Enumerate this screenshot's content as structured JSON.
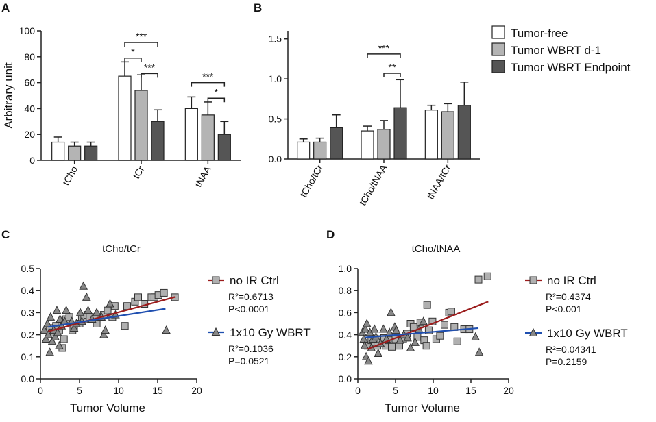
{
  "figure": {
    "panels": {
      "A": "A",
      "B": "B",
      "C": "C",
      "D": "D"
    }
  },
  "colors": {
    "tumor_free": "#ffffff",
    "wbrt_d1": "#b4b4b4",
    "wbrt_endpoint": "#555555",
    "no_ir_line": "#9b1c1c",
    "wbrt_line": "#1f4fb0",
    "marker_fill": "#b0b0b0"
  },
  "chart_data": [
    {
      "panel": "A",
      "type": "bar",
      "ylabel": "Arbitrary unit",
      "ylim": [
        0,
        100
      ],
      "yticks": [
        0,
        20,
        40,
        60,
        80,
        100
      ],
      "categories": [
        "tCho",
        "tCr",
        "tNAA"
      ],
      "series": [
        {
          "name": "Tumor-free",
          "values": [
            14,
            65,
            40
          ],
          "errors": [
            4,
            11,
            9
          ]
        },
        {
          "name": "Tumor WBRT d-1",
          "values": [
            11,
            54,
            35
          ],
          "errors": [
            3,
            12,
            10
          ]
        },
        {
          "name": "Tumor WBRT Endpoint",
          "values": [
            11,
            30,
            20
          ],
          "errors": [
            3,
            9,
            10
          ]
        }
      ],
      "significance": [
        {
          "category": 1,
          "from": 0,
          "to": 2,
          "label": "***",
          "y": 91
        },
        {
          "category": 1,
          "from": 0,
          "to": 1,
          "label": "*",
          "y": 79
        },
        {
          "category": 1,
          "from": 1,
          "to": 2,
          "label": "***",
          "y": 67
        },
        {
          "category": 2,
          "from": 0,
          "to": 2,
          "label": "***",
          "y": 60
        },
        {
          "category": 2,
          "from": 1,
          "to": 2,
          "label": "*",
          "y": 48
        }
      ]
    },
    {
      "panel": "B",
      "type": "bar",
      "ylabel": "",
      "ylim": [
        0,
        1.6
      ],
      "yticks": [
        0.0,
        0.5,
        1.0,
        1.5
      ],
      "ytick_labels": [
        "0.0",
        "0.5",
        "1.0",
        "1.5"
      ],
      "categories": [
        "tCho/tCr",
        "tCho/tNAA",
        "tNAA/tCr"
      ],
      "series": [
        {
          "name": "Tumor-free",
          "values": [
            0.21,
            0.35,
            0.61
          ],
          "errors": [
            0.04,
            0.06,
            0.06
          ]
        },
        {
          "name": "Tumor WBRT d-1",
          "values": [
            0.21,
            0.37,
            0.59
          ],
          "errors": [
            0.05,
            0.11,
            0.1
          ]
        },
        {
          "name": "Tumor WBRT Endpoint",
          "values": [
            0.39,
            0.64,
            0.67
          ],
          "errors": [
            0.16,
            0.35,
            0.29
          ]
        }
      ],
      "significance": [
        {
          "category": 1,
          "from": 0,
          "to": 2,
          "label": "***",
          "y": 1.31
        },
        {
          "category": 1,
          "from": 1,
          "to": 2,
          "label": "**",
          "y": 1.07
        }
      ]
    },
    {
      "panel": "C",
      "type": "scatter",
      "title": "tCho/tCr",
      "xlabel": "Tumor Volume",
      "xlim": [
        0,
        20
      ],
      "ylim": [
        0.0,
        0.5
      ],
      "xticks": [
        0,
        5,
        10,
        15,
        20
      ],
      "yticks": [
        0.0,
        0.1,
        0.2,
        0.3,
        0.4,
        0.5
      ],
      "ytick_labels": [
        "0.0",
        "0.1",
        "0.2",
        "0.3",
        "0.4",
        "0.5"
      ],
      "series": [
        {
          "name": "no IR Ctrl",
          "marker": "square",
          "r2": "R²=0.6713",
          "p": "P<0.0001",
          "fit": {
            "x": [
              1,
              17.3
            ],
            "y": [
              0.215,
              0.372
            ]
          },
          "points": [
            [
              1.2,
              0.23
            ],
            [
              1.5,
              0.21
            ],
            [
              2.0,
              0.24
            ],
            [
              2.4,
              0.22
            ],
            [
              2.7,
              0.26
            ],
            [
              3.0,
              0.18
            ],
            [
              3.3,
              0.27
            ],
            [
              3.7,
              0.28
            ],
            [
              4.1,
              0.22
            ],
            [
              4.3,
              0.23
            ],
            [
              5.0,
              0.25
            ],
            [
              5.3,
              0.28
            ],
            [
              5.6,
              0.27
            ],
            [
              6.0,
              0.29
            ],
            [
              6.3,
              0.28
            ],
            [
              6.8,
              0.28
            ],
            [
              7.2,
              0.25
            ],
            [
              7.8,
              0.28
            ],
            [
              8.1,
              0.29
            ],
            [
              8.6,
              0.31
            ],
            [
              9.2,
              0.28
            ],
            [
              9.5,
              0.33
            ],
            [
              10.8,
              0.24
            ],
            [
              11.1,
              0.33
            ],
            [
              12.1,
              0.35
            ],
            [
              12.5,
              0.37
            ],
            [
              13.3,
              0.34
            ],
            [
              14.2,
              0.37
            ],
            [
              14.6,
              0.37
            ],
            [
              15.1,
              0.38
            ],
            [
              15.8,
              0.39
            ],
            [
              17.2,
              0.37
            ],
            [
              2.8,
              0.14
            ]
          ]
        },
        {
          "name": "1x10 Gy WBRT",
          "marker": "triangle",
          "r2": "R²=0.1036",
          "p": "P=0.0521",
          "fit": {
            "x": [
              1,
              16
            ],
            "y": [
              0.235,
              0.318
            ]
          },
          "points": [
            [
              0.5,
              0.22
            ],
            [
              0.7,
              0.18
            ],
            [
              0.9,
              0.25
            ],
            [
              1.0,
              0.2
            ],
            [
              1.2,
              0.12
            ],
            [
              1.3,
              0.28
            ],
            [
              1.5,
              0.17
            ],
            [
              1.7,
              0.22
            ],
            [
              1.9,
              0.19
            ],
            [
              2.1,
              0.31
            ],
            [
              2.2,
              0.21
            ],
            [
              2.4,
              0.15
            ],
            [
              2.5,
              0.27
            ],
            [
              2.7,
              0.24
            ],
            [
              3.1,
              0.26
            ],
            [
              3.3,
              0.31
            ],
            [
              4.0,
              0.26
            ],
            [
              4.3,
              0.23
            ],
            [
              4.6,
              0.25
            ],
            [
              5.1,
              0.3
            ],
            [
              5.3,
              0.26
            ],
            [
              5.5,
              0.42
            ],
            [
              5.9,
              0.37
            ],
            [
              6.1,
              0.31
            ],
            [
              6.6,
              0.27
            ],
            [
              7.2,
              0.3
            ],
            [
              7.8,
              0.28
            ],
            [
              8.1,
              0.2
            ],
            [
              8.3,
              0.22
            ],
            [
              8.9,
              0.34
            ],
            [
              9.6,
              0.29
            ],
            [
              16.1,
              0.22
            ]
          ]
        }
      ]
    },
    {
      "panel": "D",
      "type": "scatter",
      "title": "tCho/tNAA",
      "xlabel": "Tumor Volume",
      "xlim": [
        0,
        20
      ],
      "ylim": [
        0.0,
        1.0
      ],
      "xticks": [
        0,
        5,
        10,
        15,
        20
      ],
      "yticks": [
        0.0,
        0.2,
        0.4,
        0.6,
        0.8,
        1.0
      ],
      "ytick_labels": [
        "0.0",
        "0.2",
        "0.4",
        "0.6",
        "0.8",
        "1.0"
      ],
      "series": [
        {
          "name": "no IR Ctrl",
          "marker": "square",
          "r2": "R²=0.4374",
          "p": "P<0.001",
          "fit": {
            "x": [
              1.3,
              17.3
            ],
            "y": [
              0.27,
              0.7
            ]
          },
          "points": [
            [
              1.3,
              0.3
            ],
            [
              1.8,
              0.35
            ],
            [
              2.2,
              0.33
            ],
            [
              2.6,
              0.3
            ],
            [
              3.0,
              0.36
            ],
            [
              3.5,
              0.37
            ],
            [
              3.7,
              0.3
            ],
            [
              4.1,
              0.35
            ],
            [
              4.5,
              0.29
            ],
            [
              5.0,
              0.36
            ],
            [
              5.5,
              0.3
            ],
            [
              6.0,
              0.36
            ],
            [
              6.5,
              0.41
            ],
            [
              7.0,
              0.5
            ],
            [
              7.4,
              0.47
            ],
            [
              7.9,
              0.38
            ],
            [
              8.3,
              0.51
            ],
            [
              8.8,
              0.35
            ],
            [
              9.1,
              0.3
            ],
            [
              9.4,
              0.44
            ],
            [
              9.9,
              0.52
            ],
            [
              10.4,
              0.36
            ],
            [
              10.9,
              0.39
            ],
            [
              11.5,
              0.49
            ],
            [
              12.1,
              0.6
            ],
            [
              12.4,
              0.61
            ],
            [
              12.8,
              0.47
            ],
            [
              13.2,
              0.34
            ],
            [
              14.1,
              0.45
            ],
            [
              14.8,
              0.45
            ],
            [
              16.0,
              0.9
            ],
            [
              17.2,
              0.93
            ],
            [
              9.2,
              0.67
            ]
          ]
        },
        {
          "name": "1x10 Gy WBRT",
          "marker": "triangle",
          "r2": "R²=0.04341",
          "p": "P=0.2159",
          "fit": {
            "x": [
              1,
              16
            ],
            "y": [
              0.375,
              0.46
            ]
          },
          "points": [
            [
              0.6,
              0.42
            ],
            [
              0.8,
              0.36
            ],
            [
              0.9,
              0.3
            ],
            [
              1.0,
              0.45
            ],
            [
              1.1,
              0.2
            ],
            [
              1.2,
              0.5
            ],
            [
              1.4,
              0.16
            ],
            [
              1.6,
              0.42
            ],
            [
              1.8,
              0.28
            ],
            [
              2.0,
              0.36
            ],
            [
              2.2,
              0.45
            ],
            [
              2.4,
              0.38
            ],
            [
              2.7,
              0.23
            ],
            [
              3.0,
              0.32
            ],
            [
              3.4,
              0.45
            ],
            [
              3.8,
              0.36
            ],
            [
              4.2,
              0.42
            ],
            [
              4.4,
              0.6
            ],
            [
              4.9,
              0.47
            ],
            [
              5.1,
              0.44
            ],
            [
              5.6,
              0.35
            ],
            [
              6.1,
              0.4
            ],
            [
              6.6,
              0.37
            ],
            [
              7.0,
              0.28
            ],
            [
              7.6,
              0.33
            ],
            [
              8.1,
              0.45
            ],
            [
              8.7,
              0.52
            ],
            [
              15.6,
              0.38
            ],
            [
              16.1,
              0.24
            ]
          ]
        }
      ]
    }
  ],
  "legend_top": {
    "items": [
      "Tumor-free",
      "Tumor WBRT d-1",
      "Tumor WBRT Endpoint"
    ]
  }
}
